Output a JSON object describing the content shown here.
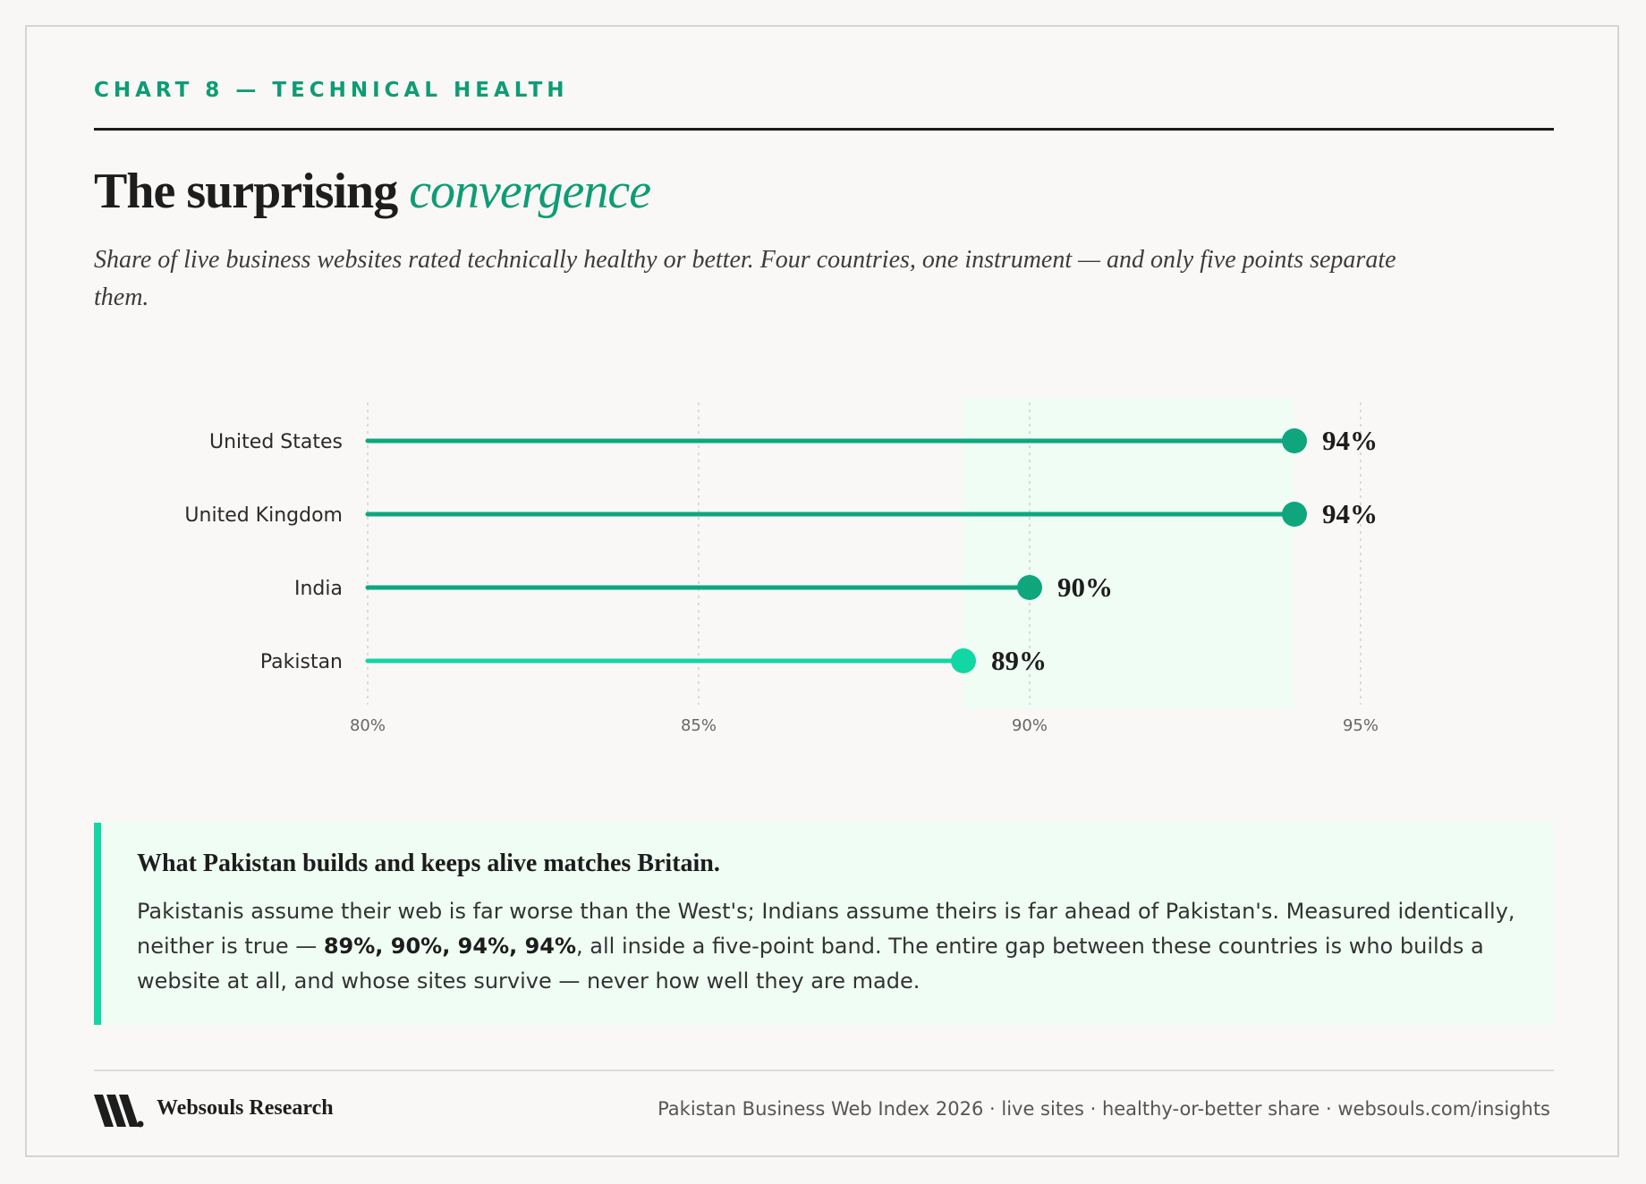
{
  "header": {
    "eyebrow": "CHART 8 — TECHNICAL HEALTH",
    "title_main": "The surprising",
    "title_accent": "convergence",
    "subtitle": "Share of live business websites rated technically healthy or better. Four countries, one instrument — and only five points separate them."
  },
  "chart_data": {
    "type": "lollipop",
    "categories": [
      "United States",
      "United Kingdom",
      "India",
      "Pakistan"
    ],
    "values": [
      94,
      94,
      90,
      89
    ],
    "value_labels": [
      "94%",
      "94%",
      "90%",
      "89%"
    ],
    "xlim": [
      80,
      97
    ],
    "xticks": [
      80,
      85,
      90,
      95
    ],
    "xtick_labels": [
      "80%",
      "85%",
      "90%",
      "95%"
    ],
    "highlight_band": [
      89,
      94
    ],
    "highlight_category": "Pakistan",
    "grid": "vertical dashed",
    "colors": {
      "default": "#0fa67e",
      "highlight": "#12d6a3",
      "band": "#effdf4"
    }
  },
  "callout": {
    "title": "What Pakistan builds and keeps alive matches Britain.",
    "body_pre": "Pakistanis assume their web is far worse than the West's; Indians assume theirs is far ahead of Pakistan's. Measured identically, neither is true — ",
    "body_bold": "89%, 90%, 94%, 94%",
    "body_post": ", all inside a five-point band. The entire gap between these countries is who builds a website at all, and whose sites survive — never how well they are made."
  },
  "footer": {
    "logo_icon": "websouls-logo-icon",
    "brand": "Websouls Research",
    "source": "Pakistan Business Web Index 2026 · live sites · healthy-or-better share · websouls.com/insights"
  }
}
